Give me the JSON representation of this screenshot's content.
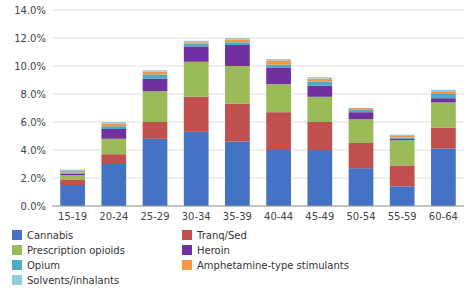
{
  "chart_data": {
    "type": "bar",
    "stacked": true,
    "grid": true,
    "legend": "bottom",
    "categories": [
      "15-19",
      "20-24",
      "25-29",
      "30-34",
      "35-39",
      "40-44",
      "45-49",
      "50-54",
      "55-59",
      "60-64"
    ],
    "series": [
      {
        "name": "Cannabis",
        "color": "#4472C4",
        "values": [
          1.5,
          3.0,
          4.8,
          5.3,
          4.6,
          4.0,
          4.0,
          2.7,
          1.4,
          4.1
        ]
      },
      {
        "name": "Tranq/Sed",
        "color": "#C0504D",
        "values": [
          0.4,
          0.7,
          1.2,
          2.5,
          2.7,
          2.7,
          2.0,
          1.8,
          1.5,
          1.5
        ]
      },
      {
        "name": "Prescription opioids",
        "color": "#9BBB59",
        "values": [
          0.3,
          1.1,
          2.2,
          2.5,
          2.7,
          2.0,
          1.8,
          1.7,
          1.8,
          1.8
        ]
      },
      {
        "name": "Heroin",
        "color": "#7030A0",
        "values": [
          0.1,
          0.7,
          0.9,
          1.1,
          1.5,
          1.2,
          0.8,
          0.5,
          0.1,
          0.3
        ]
      },
      {
        "name": "Opium",
        "color": "#4BACC6",
        "values": [
          0.1,
          0.2,
          0.3,
          0.2,
          0.2,
          0.2,
          0.3,
          0.2,
          0.1,
          0.3
        ]
      },
      {
        "name": "Amphetamine-type stimulants",
        "color": "#F79646",
        "values": [
          0.1,
          0.2,
          0.2,
          0.1,
          0.2,
          0.3,
          0.2,
          0.1,
          0.1,
          0.2
        ]
      },
      {
        "name": "Solvents/inhalants",
        "color": "#92CDDC",
        "values": [
          0.1,
          0.1,
          0.1,
          0.1,
          0.1,
          0.1,
          0.1,
          0.0,
          0.1,
          0.1
        ]
      }
    ],
    "ylim": [
      0,
      14.0
    ],
    "yticks": [
      {
        "value": 0.0,
        "label": "0.0%"
      },
      {
        "value": 2.0,
        "label": "2.0%"
      },
      {
        "value": 4.0,
        "label": "4.0%"
      },
      {
        "value": 6.0,
        "label": "6.0%"
      },
      {
        "value": 8.0,
        "label": "8.0%"
      },
      {
        "value": 10.0,
        "label": "10.0%"
      },
      {
        "value": 12.0,
        "label": "12.0%"
      },
      {
        "value": 14.0,
        "label": "14.0%"
      }
    ]
  }
}
